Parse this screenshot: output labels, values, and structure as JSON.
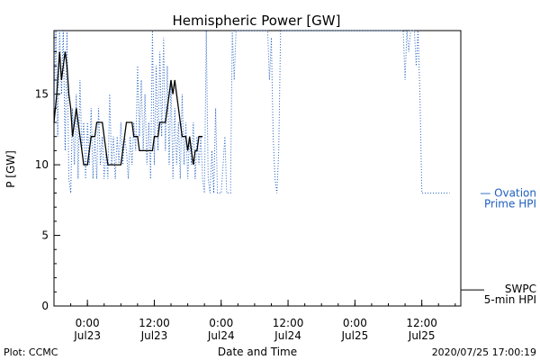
{
  "chart_data": {
    "type": "line",
    "title": "Hemispheric Power [GW]",
    "xlabel": "Date and Time",
    "ylabel": "P [GW]",
    "ylim": [
      0,
      19.5
    ],
    "xlim": [
      "2020-07-22T18:00",
      "2020-07-25T19:00"
    ],
    "yticks": [
      0,
      5,
      10,
      15
    ],
    "xticks": [
      {
        "x": "2020-07-23T00:00",
        "time": "0:00",
        "date": "Jul23"
      },
      {
        "x": "2020-07-23T12:00",
        "time": "12:00",
        "date": "Jul23"
      },
      {
        "x": "2020-07-24T00:00",
        "time": "0:00",
        "date": "Jul24"
      },
      {
        "x": "2020-07-24T12:00",
        "time": "12:00",
        "date": "Jul24"
      },
      {
        "x": "2020-07-25T00:00",
        "time": "0:00",
        "date": "Jul25"
      },
      {
        "x": "2020-07-25T12:00",
        "time": "12:00",
        "date": "Jul25"
      }
    ],
    "series": [
      {
        "name": "SWPC 5-min HPI",
        "legend_lines": [
          "SWPC",
          "5-min HPI"
        ],
        "color": "#000000",
        "style": "solid",
        "points": [
          [
            "2020-07-22T18:00",
            13
          ],
          [
            "2020-07-22T18:30",
            15
          ],
          [
            "2020-07-22T19:00",
            18
          ],
          [
            "2020-07-22T19:20",
            16
          ],
          [
            "2020-07-22T19:40",
            17
          ],
          [
            "2020-07-22T20:00",
            18
          ],
          [
            "2020-07-22T20:20",
            17
          ],
          [
            "2020-07-22T20:40",
            15
          ],
          [
            "2020-07-22T21:00",
            14
          ],
          [
            "2020-07-22T21:20",
            12
          ],
          [
            "2020-07-22T21:40",
            13
          ],
          [
            "2020-07-22T22:00",
            14
          ],
          [
            "2020-07-22T22:20",
            13
          ],
          [
            "2020-07-22T22:40",
            12
          ],
          [
            "2020-07-22T23:00",
            11
          ],
          [
            "2020-07-22T23:20",
            10
          ],
          [
            "2020-07-23T00:00",
            10
          ],
          [
            "2020-07-23T00:20",
            11
          ],
          [
            "2020-07-23T00:40",
            12
          ],
          [
            "2020-07-23T01:20",
            12
          ],
          [
            "2020-07-23T01:40",
            13
          ],
          [
            "2020-07-23T02:40",
            13
          ],
          [
            "2020-07-23T03:00",
            12
          ],
          [
            "2020-07-23T03:20",
            11
          ],
          [
            "2020-07-23T03:40",
            10
          ],
          [
            "2020-07-23T06:00",
            10
          ],
          [
            "2020-07-23T06:20",
            11
          ],
          [
            "2020-07-23T06:40",
            12
          ],
          [
            "2020-07-23T07:00",
            13
          ],
          [
            "2020-07-23T08:00",
            13
          ],
          [
            "2020-07-23T08:20",
            12
          ],
          [
            "2020-07-23T09:00",
            12
          ],
          [
            "2020-07-23T09:20",
            11
          ],
          [
            "2020-07-23T11:40",
            11
          ],
          [
            "2020-07-23T12:00",
            12
          ],
          [
            "2020-07-23T12:40",
            12
          ],
          [
            "2020-07-23T13:00",
            13
          ],
          [
            "2020-07-23T14:00",
            13
          ],
          [
            "2020-07-23T14:20",
            14
          ],
          [
            "2020-07-23T14:40",
            15
          ],
          [
            "2020-07-23T15:00",
            16
          ],
          [
            "2020-07-23T15:20",
            15
          ],
          [
            "2020-07-23T15:40",
            16
          ],
          [
            "2020-07-23T16:00",
            15
          ],
          [
            "2020-07-23T16:20",
            14
          ],
          [
            "2020-07-23T16:40",
            13
          ],
          [
            "2020-07-23T17:00",
            12
          ],
          [
            "2020-07-23T17:40",
            12
          ],
          [
            "2020-07-23T18:00",
            11
          ],
          [
            "2020-07-23T18:20",
            12
          ],
          [
            "2020-07-23T18:40",
            11
          ],
          [
            "2020-07-23T19:00",
            10
          ],
          [
            "2020-07-23T19:20",
            11
          ],
          [
            "2020-07-23T19:40",
            11
          ],
          [
            "2020-07-23T20:00",
            12
          ],
          [
            "2020-07-23T20:40",
            12
          ]
        ]
      },
      {
        "name": "Ovation Prime HPI",
        "legend_lines": [
          "— Ovation",
          "Prime HPI"
        ],
        "color": "#1f5fbf",
        "style": "dotted",
        "points": [
          [
            "2020-07-22T18:00",
            14
          ],
          [
            "2020-07-22T18:20",
            19.5
          ],
          [
            "2020-07-22T18:40",
            12
          ],
          [
            "2020-07-22T19:00",
            19.5
          ],
          [
            "2020-07-22T19:20",
            15
          ],
          [
            "2020-07-22T19:40",
            19.5
          ],
          [
            "2020-07-22T20:00",
            11
          ],
          [
            "2020-07-22T20:20",
            19.5
          ],
          [
            "2020-07-22T20:40",
            9
          ],
          [
            "2020-07-22T21:00",
            8
          ],
          [
            "2020-07-22T21:20",
            14
          ],
          [
            "2020-07-22T21:40",
            10
          ],
          [
            "2020-07-22T22:00",
            15
          ],
          [
            "2020-07-22T22:20",
            9
          ],
          [
            "2020-07-22T22:40",
            16
          ],
          [
            "2020-07-22T23:00",
            11
          ],
          [
            "2020-07-22T23:20",
            13
          ],
          [
            "2020-07-22T23:40",
            9
          ],
          [
            "2020-07-23T00:00",
            13
          ],
          [
            "2020-07-23T00:20",
            10
          ],
          [
            "2020-07-23T00:40",
            14
          ],
          [
            "2020-07-23T01:00",
            9
          ],
          [
            "2020-07-23T01:20",
            12
          ],
          [
            "2020-07-23T01:40",
            9
          ],
          [
            "2020-07-23T02:00",
            14
          ],
          [
            "2020-07-23T02:20",
            10
          ],
          [
            "2020-07-23T02:40",
            12
          ],
          [
            "2020-07-23T03:00",
            9
          ],
          [
            "2020-07-23T03:20",
            11
          ],
          [
            "2020-07-23T03:40",
            9
          ],
          [
            "2020-07-23T04:00",
            15
          ],
          [
            "2020-07-23T04:20",
            10
          ],
          [
            "2020-07-23T04:40",
            12
          ],
          [
            "2020-07-23T05:00",
            9
          ],
          [
            "2020-07-23T05:20",
            12
          ],
          [
            "2020-07-23T05:40",
            10
          ],
          [
            "2020-07-23T06:00",
            13
          ],
          [
            "2020-07-23T06:20",
            10
          ],
          [
            "2020-07-23T06:40",
            12
          ],
          [
            "2020-07-23T07:00",
            11
          ],
          [
            "2020-07-23T07:20",
            9
          ],
          [
            "2020-07-23T07:40",
            12
          ],
          [
            "2020-07-23T08:00",
            10
          ],
          [
            "2020-07-23T08:20",
            13
          ],
          [
            "2020-07-23T08:40",
            11
          ],
          [
            "2020-07-23T09:00",
            17
          ],
          [
            "2020-07-23T09:20",
            12
          ],
          [
            "2020-07-23T09:40",
            16
          ],
          [
            "2020-07-23T10:00",
            11
          ],
          [
            "2020-07-23T10:20",
            15
          ],
          [
            "2020-07-23T10:40",
            10
          ],
          [
            "2020-07-23T11:00",
            13
          ],
          [
            "2020-07-23T11:20",
            9
          ],
          [
            "2020-07-23T11:40",
            19.5
          ],
          [
            "2020-07-23T12:00",
            10
          ],
          [
            "2020-07-23T12:20",
            17
          ],
          [
            "2020-07-23T12:40",
            11
          ],
          [
            "2020-07-23T13:00",
            18
          ],
          [
            "2020-07-23T13:20",
            12
          ],
          [
            "2020-07-23T13:40",
            19
          ],
          [
            "2020-07-23T14:00",
            11
          ],
          [
            "2020-07-23T14:20",
            17
          ],
          [
            "2020-07-23T14:40",
            10
          ],
          [
            "2020-07-23T15:00",
            16
          ],
          [
            "2020-07-23T15:20",
            9
          ],
          [
            "2020-07-23T15:40",
            14
          ],
          [
            "2020-07-23T16:00",
            10
          ],
          [
            "2020-07-23T16:20",
            13
          ],
          [
            "2020-07-23T16:40",
            9
          ],
          [
            "2020-07-23T17:00",
            15
          ],
          [
            "2020-07-23T17:20",
            10
          ],
          [
            "2020-07-23T17:40",
            13
          ],
          [
            "2020-07-23T18:00",
            9
          ],
          [
            "2020-07-23T18:20",
            12
          ],
          [
            "2020-07-23T18:40",
            10
          ],
          [
            "2020-07-23T19:00",
            13
          ],
          [
            "2020-07-23T19:20",
            9
          ],
          [
            "2020-07-23T19:40",
            12
          ],
          [
            "2020-07-23T20:00",
            10
          ],
          [
            "2020-07-23T20:20",
            12
          ],
          [
            "2020-07-23T20:40",
            9
          ],
          [
            "2020-07-23T21:00",
            8
          ],
          [
            "2020-07-23T21:20",
            19.5
          ],
          [
            "2020-07-23T21:40",
            9
          ],
          [
            "2020-07-23T22:00",
            8
          ],
          [
            "2020-07-23T22:20",
            11
          ],
          [
            "2020-07-23T22:40",
            8
          ],
          [
            "2020-07-23T23:00",
            14
          ],
          [
            "2020-07-23T23:20",
            8
          ],
          [
            "2020-07-24T00:00",
            8
          ],
          [
            "2020-07-24T00:40",
            12
          ],
          [
            "2020-07-24T01:00",
            8
          ],
          [
            "2020-07-24T01:40",
            8
          ],
          [
            "2020-07-24T02:00",
            19.5
          ],
          [
            "2020-07-24T02:20",
            16
          ],
          [
            "2020-07-24T02:40",
            19.5
          ],
          [
            "2020-07-24T03:00",
            19.5
          ],
          [
            "2020-07-24T08:00",
            19.5
          ],
          [
            "2020-07-24T08:20",
            19.5
          ],
          [
            "2020-07-24T08:40",
            16
          ],
          [
            "2020-07-24T09:00",
            19
          ],
          [
            "2020-07-24T09:20",
            12
          ],
          [
            "2020-07-24T09:40",
            9
          ],
          [
            "2020-07-24T10:00",
            8
          ],
          [
            "2020-07-24T10:20",
            11
          ],
          [
            "2020-07-24T10:40",
            19.5
          ],
          [
            "2020-07-25T08:40",
            19.5
          ],
          [
            "2020-07-25T09:00",
            16
          ],
          [
            "2020-07-25T09:20",
            19.5
          ],
          [
            "2020-07-25T09:40",
            18
          ],
          [
            "2020-07-25T10:00",
            19.5
          ],
          [
            "2020-07-25T10:40",
            19.5
          ],
          [
            "2020-07-25T11:00",
            17
          ],
          [
            "2020-07-25T11:20",
            19.5
          ],
          [
            "2020-07-25T11:40",
            15
          ],
          [
            "2020-07-25T12:00",
            8
          ],
          [
            "2020-07-25T17:00",
            8
          ]
        ]
      }
    ]
  },
  "footer": {
    "left": "Plot: CCMC",
    "timestamp": "2020/07/25 17:00:19"
  }
}
